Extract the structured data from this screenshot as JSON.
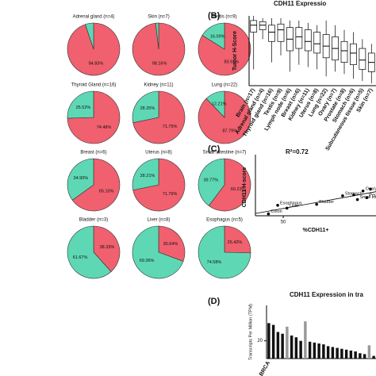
{
  "chart_data": [
    {
      "type": "pie",
      "title": "Adrenal gland (n=4)",
      "values": [
        94.83,
        5.17
      ],
      "value_labels": [
        "94.83%",
        null
      ],
      "colors": [
        "#f0606e",
        "#5ed8b4"
      ]
    },
    {
      "type": "pie",
      "title": "Skin (n=7)",
      "values": [
        98.16,
        1.84
      ],
      "value_labels": [
        "98.16%",
        null
      ],
      "colors": [
        "#f0606e",
        "#5ed8b4"
      ]
    },
    {
      "type": "pie",
      "title": "Testis (n=9)",
      "values": [
        83.91,
        16.09
      ],
      "value_labels": [
        "83.91%",
        "16.09%"
      ],
      "colors": [
        "#f0606e",
        "#5ed8b4"
      ]
    },
    {
      "type": "pie",
      "title": "Thyroid Gland (n=16)",
      "values": [
        74.48,
        25.52
      ],
      "value_labels": [
        "74.48%",
        "25.52%"
      ],
      "colors": [
        "#f0606e",
        "#5ed8b4"
      ]
    },
    {
      "type": "pie",
      "title": "Kidney (n=11)",
      "values": [
        71.75,
        28.25
      ],
      "value_labels": [
        "71.75%",
        "28.25%"
      ],
      "colors": [
        "#f0606e",
        "#5ed8b4"
      ]
    },
    {
      "type": "pie",
      "title": "Lung (n=22)",
      "values": [
        87.79,
        12.21
      ],
      "value_labels": [
        "87.79%",
        "12.21%"
      ],
      "colors": [
        "#f0606e",
        "#5ed8b4"
      ]
    },
    {
      "type": "pie",
      "title": "Breast (n=6)",
      "values": [
        65.1,
        34.9
      ],
      "value_labels": [
        "65.10%",
        "34.90%"
      ],
      "colors": [
        "#f0606e",
        "#5ed8b4"
      ]
    },
    {
      "type": "pie",
      "title": "Uterus (n=8)",
      "values": [
        71.79,
        28.21
      ],
      "value_labels": [
        "71.79%",
        "28.21%"
      ],
      "colors": [
        "#f0606e",
        "#5ed8b4"
      ]
    },
    {
      "type": "pie",
      "title": "Small intestine (n=7)",
      "values": [
        60.23,
        39.77
      ],
      "value_labels": [
        "60.23%",
        "39.77%"
      ],
      "colors": [
        "#f0606e",
        "#5ed8b4"
      ]
    },
    {
      "type": "pie",
      "title": "Bladder (n=3)",
      "values": [
        38.33,
        61.67
      ],
      "value_labels": [
        "38.33%",
        "61.67%"
      ],
      "colors": [
        "#f0606e",
        "#5ed8b4"
      ]
    },
    {
      "type": "pie",
      "title": "Liver (n=8)",
      "values": [
        30.64,
        69.36
      ],
      "value_labels": [
        "30.64%",
        "69.36%"
      ],
      "colors": [
        "#f0606e",
        "#5ed8b4"
      ]
    },
    {
      "type": "pie",
      "title": "Esophagus (n=5)",
      "values": [
        25.42,
        74.58
      ],
      "value_labels": [
        "25.42%",
        "74.58%"
      ],
      "colors": [
        "#f0606e",
        "#5ed8b4"
      ]
    },
    {
      "type": "box",
      "panel": "(B)",
      "title": "CDH11 Expressio",
      "ylabel": "Tumor H-Score",
      "ylim": [
        0,
        300
      ],
      "categories": [
        "Brain (n=17)",
        "Adrenal gland (n=4)",
        "Thyroid gland (n=16)",
        "Testis (n=9)",
        "Lymph node (n=6)",
        "Breast (n=6)",
        "Kidney (n=11)",
        "Uterus (n=8)",
        "Lung (n=22)",
        "Ovary (n=7)",
        "Prostate (n=8)",
        "Stomach (n=6)",
        "Subcutaneous tissue (n=5)",
        "Skin (n=7)"
      ],
      "boxes": [
        {
          "min": 70,
          "q1": 230,
          "median": 260,
          "q3": 280,
          "max": 300
        },
        {
          "min": 200,
          "q1": 240,
          "median": 260,
          "q3": 275,
          "max": 290
        },
        {
          "min": 100,
          "q1": 190,
          "median": 230,
          "q3": 260,
          "max": 290
        },
        {
          "min": 130,
          "q1": 190,
          "median": 240,
          "q3": 265,
          "max": 290
        },
        {
          "min": 60,
          "q1": 150,
          "median": 200,
          "q3": 250,
          "max": 280
        },
        {
          "min": 90,
          "q1": 160,
          "median": 210,
          "q3": 250,
          "max": 280
        },
        {
          "min": 80,
          "q1": 150,
          "median": 190,
          "q3": 240,
          "max": 270
        },
        {
          "min": 70,
          "q1": 140,
          "median": 180,
          "q3": 230,
          "max": 260
        },
        {
          "min": 40,
          "q1": 120,
          "median": 170,
          "q3": 220,
          "max": 280
        },
        {
          "min": 60,
          "q1": 110,
          "median": 160,
          "q3": 210,
          "max": 260
        },
        {
          "min": 50,
          "q1": 100,
          "median": 150,
          "q3": 190,
          "max": 240
        },
        {
          "min": 30,
          "q1": 90,
          "median": 140,
          "q3": 180,
          "max": 230
        },
        {
          "min": 20,
          "q1": 70,
          "median": 110,
          "q3": 160,
          "max": 200
        },
        {
          "min": 10,
          "q1": 60,
          "median": 100,
          "q3": 140,
          "max": 180
        }
      ]
    },
    {
      "type": "scatter",
      "panel": "(C)",
      "annotation": "R²=0.72",
      "ylabel": "CDH11 H-score",
      "xlabel": "%CDH11+",
      "xlim": [
        35,
        100
      ],
      "xticks": [
        50
      ],
      "ylim": [
        0,
        300
      ],
      "x": [
        42,
        47,
        52,
        68,
        82,
        93,
        90,
        95,
        88,
        97
      ],
      "values": [
        10,
        55,
        40,
        60,
        105,
        130,
        85,
        95,
        110,
        140
      ],
      "point_labels": [
        "Colon",
        "Esophagus",
        "Liver",
        "Bladder",
        "Stomach",
        "Ovary",
        "Small intes",
        "Peri",
        null,
        null
      ]
    },
    {
      "type": "bar",
      "panel": "(D)",
      "title": "CDH11 Expression in tra",
      "ylabel": "Transcripts Per Million (TPM)",
      "ylim": [
        0,
        60
      ],
      "yticks": [
        20
      ],
      "categories": [
        "BRCA",
        null,
        null,
        null,
        null,
        null,
        null,
        null,
        null,
        null,
        null,
        null,
        null,
        null,
        null,
        null,
        null,
        null,
        null,
        null,
        null,
        null,
        null,
        null
      ],
      "values": [
        40,
        38,
        30,
        28,
        36,
        26,
        24,
        20,
        42,
        19,
        18,
        17,
        16,
        14,
        13,
        12,
        11,
        10,
        9,
        8,
        6,
        5,
        15,
        3
      ],
      "colors": [
        "#111",
        "#111",
        "#111",
        "#111",
        "#999",
        "#111",
        "#111",
        "#111",
        "#999",
        "#111",
        "#111",
        "#111",
        "#111",
        "#111",
        "#111",
        "#111",
        "#111",
        "#111",
        "#111",
        "#111",
        "#111",
        "#111",
        "#999",
        "#111"
      ]
    }
  ]
}
